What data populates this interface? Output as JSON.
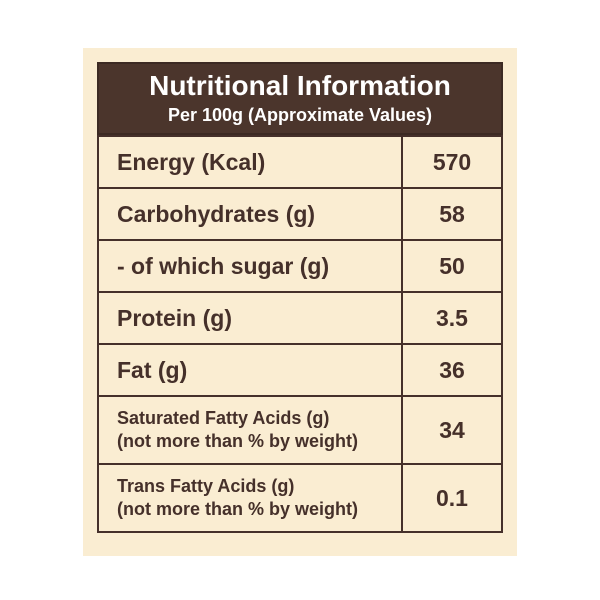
{
  "colors": {
    "page_background": "#ffffff",
    "card_background": "#FAEDD2",
    "header_background": "#4B352C",
    "header_text": "#ffffff",
    "body_text": "#45302a",
    "border": "#45302a"
  },
  "header": {
    "title": "Nutritional Information",
    "subtitle": "Per 100g (Approximate Values)"
  },
  "rows": [
    {
      "label": "Energy (Kcal)",
      "value": "570"
    },
    {
      "label": "Carbohydrates (g)",
      "value": "58"
    },
    {
      "label": "- of which sugar (g)",
      "value": "50"
    },
    {
      "label": "Protein (g)",
      "value": "3.5"
    },
    {
      "label": "Fat (g)",
      "value": "36"
    },
    {
      "label": "Saturated Fatty Acids (g)",
      "label2": "(not more than % by weight)",
      "value": "34"
    },
    {
      "label": "Trans Fatty Acids (g)",
      "label2": "(not more than % by weight)",
      "value": "0.1"
    }
  ]
}
